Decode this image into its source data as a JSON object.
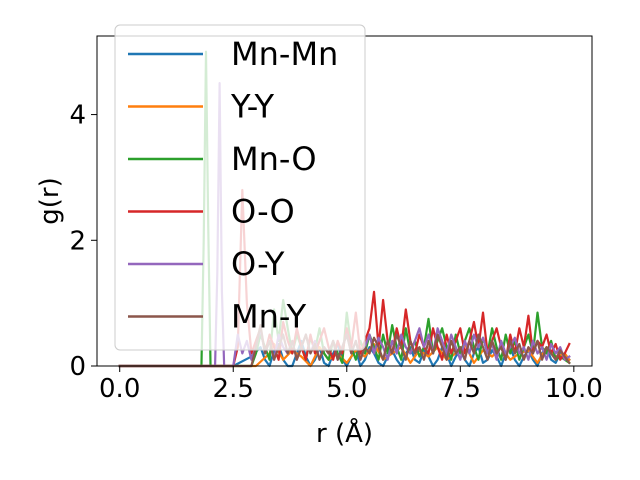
{
  "chart_data": {
    "type": "line",
    "title": "",
    "xlabel": "r (Å)",
    "ylabel": "g(r)",
    "xlim": [
      -0.5,
      10.4
    ],
    "ylim": [
      0,
      5.25
    ],
    "xticks": [
      0.0,
      2.5,
      5.0,
      7.5,
      10.0
    ],
    "xtick_labels": [
      "0.0",
      "2.5",
      "5.0",
      "7.5",
      "10.0"
    ],
    "yticks": [
      0,
      2,
      4
    ],
    "ytick_labels": [
      "0",
      "2",
      "4"
    ],
    "grid": false,
    "legend_position": "top-left",
    "series": [
      {
        "name": "Mn-Mn",
        "color": "#1f77b4",
        "x": [
          0.0,
          2.5,
          2.9,
          3.1,
          3.2,
          3.3,
          3.4,
          3.5,
          3.6,
          3.7,
          3.8,
          3.9,
          4.0,
          4.1,
          4.2,
          4.3,
          4.4,
          4.5,
          4.6,
          4.7,
          4.8,
          4.9,
          5.0,
          5.1,
          5.2,
          5.3,
          5.4,
          5.5,
          5.6,
          5.7,
          5.8,
          5.9,
          6.0,
          6.1,
          6.2,
          6.3,
          6.4,
          6.5,
          6.6,
          6.7,
          6.8,
          6.9,
          7.0,
          7.1,
          7.2,
          7.3,
          7.4,
          7.5,
          7.6,
          7.7,
          7.8,
          7.9,
          8.0,
          8.1,
          8.2,
          8.3,
          8.4,
          8.5,
          8.6,
          8.7,
          8.8,
          8.9,
          9.0,
          9.1,
          9.2,
          9.3,
          9.4,
          9.5,
          9.6,
          9.7,
          9.8,
          9.9
        ],
        "y": [
          0,
          0,
          0.15,
          0.3,
          0.1,
          0,
          0.25,
          0.35,
          0.1,
          0,
          0,
          0.2,
          0.4,
          0.15,
          0,
          0.1,
          0.3,
          0.05,
          0,
          0.2,
          0.35,
          0.1,
          0,
          0.15,
          0.25,
          0,
          0.1,
          0.3,
          0.2,
          0.05,
          0,
          0.15,
          0.25,
          0.1,
          0,
          0.2,
          0.3,
          0.1,
          0.05,
          0.25,
          0.15,
          0,
          0.1,
          0.3,
          0.2,
          0,
          0.15,
          0.25,
          0.1,
          0,
          0.2,
          0.3,
          0.05,
          0.1,
          0.25,
          0.15,
          0,
          0.2,
          0.3,
          0.1,
          0,
          0.15,
          0.25,
          0.1,
          0,
          0.2,
          0.3,
          0.1,
          0.05,
          0.2,
          0.15,
          0.1
        ]
      },
      {
        "name": "Y-Y",
        "color": "#ff7f0e",
        "x": [
          0.0,
          3.0,
          3.3,
          3.4,
          3.6,
          3.8,
          4.0,
          4.2,
          4.4,
          4.6,
          4.8,
          5.0,
          5.2,
          5.4,
          5.6,
          5.8,
          6.0,
          6.2,
          6.4,
          6.6,
          6.8,
          7.0,
          7.2,
          7.4,
          7.6,
          7.8,
          8.0,
          8.2,
          8.4,
          8.6,
          8.8,
          9.0,
          9.2,
          9.4,
          9.6,
          9.8,
          9.9
        ],
        "y": [
          0,
          0,
          0.2,
          0.35,
          0.1,
          0.25,
          0.15,
          0,
          0.3,
          0.1,
          0.2,
          0.05,
          0.25,
          0.15,
          0.35,
          0.1,
          0.2,
          0.3,
          0.05,
          0.25,
          0.15,
          0.3,
          0.1,
          0.2,
          0.35,
          0.05,
          0.25,
          0.15,
          0.3,
          0.1,
          0.2,
          0.25,
          0.05,
          0.3,
          0.15,
          0.2,
          0.1
        ]
      },
      {
        "name": "Mn-O",
        "color": "#2ca02c",
        "x": [
          0.0,
          1.8,
          1.85,
          1.9,
          1.95,
          2.0,
          2.1,
          2.3,
          2.5,
          2.7,
          2.9,
          3.0,
          3.1,
          3.2,
          3.3,
          3.4,
          3.5,
          3.6,
          3.7,
          3.8,
          3.9,
          4.0,
          4.1,
          4.2,
          4.3,
          4.4,
          4.5,
          4.6,
          4.7,
          4.8,
          4.9,
          5.0,
          5.1,
          5.2,
          5.3,
          5.4,
          5.5,
          5.6,
          5.7,
          5.8,
          5.9,
          6.0,
          6.1,
          6.2,
          6.3,
          6.4,
          6.5,
          6.6,
          6.7,
          6.8,
          6.9,
          7.0,
          7.1,
          7.2,
          7.3,
          7.4,
          7.5,
          7.6,
          7.7,
          7.8,
          7.9,
          8.0,
          8.1,
          8.2,
          8.3,
          8.4,
          8.5,
          8.6,
          8.7,
          8.8,
          8.9,
          9.0,
          9.1,
          9.2,
          9.3,
          9.4,
          9.5,
          9.6,
          9.7,
          9.8,
          9.9
        ],
        "y": [
          0,
          0,
          2.0,
          5.0,
          2.2,
          0,
          0,
          0,
          0,
          0,
          0,
          0.2,
          0.5,
          0.3,
          0.1,
          0.9,
          0.4,
          1.05,
          0.6,
          0.2,
          0.5,
          0.3,
          0.1,
          0.45,
          0.25,
          0.6,
          0.2,
          0.1,
          0.4,
          0.2,
          0.05,
          0.85,
          0.3,
          0.1,
          0.4,
          0.2,
          0.5,
          0.3,
          0.1,
          0.5,
          0.2,
          0.65,
          0.3,
          0.1,
          0.6,
          0.2,
          0.4,
          0.15,
          0.3,
          0.75,
          0.2,
          0.4,
          0.6,
          0.3,
          0.1,
          0.5,
          0.2,
          0.4,
          0.6,
          0.3,
          0.1,
          0.45,
          0.2,
          0.6,
          0.3,
          0.1,
          0.5,
          0.2,
          0.4,
          0.1,
          0.3,
          0.5,
          0.2,
          0.85,
          0.3,
          0.2,
          0.4,
          0.1,
          0.15,
          0.1,
          0.05
        ]
      },
      {
        "name": "O-O",
        "color": "#d62728",
        "x": [
          0.0,
          2.5,
          2.6,
          2.7,
          2.8,
          2.9,
          3.0,
          3.1,
          3.2,
          3.3,
          3.4,
          3.5,
          3.6,
          3.7,
          3.8,
          3.9,
          4.0,
          4.1,
          4.2,
          4.3,
          4.4,
          4.5,
          4.6,
          4.7,
          4.8,
          4.9,
          5.0,
          5.1,
          5.2,
          5.3,
          5.4,
          5.5,
          5.6,
          5.7,
          5.8,
          5.9,
          6.0,
          6.1,
          6.2,
          6.3,
          6.4,
          6.5,
          6.6,
          6.7,
          6.8,
          6.9,
          7.0,
          7.1,
          7.2,
          7.3,
          7.4,
          7.5,
          7.6,
          7.7,
          7.8,
          7.9,
          8.0,
          8.1,
          8.2,
          8.3,
          8.4,
          8.5,
          8.6,
          8.7,
          8.8,
          8.9,
          9.0,
          9.1,
          9.2,
          9.3,
          9.4,
          9.5,
          9.6,
          9.7,
          9.8,
          9.9
        ],
        "y": [
          0,
          0,
          0.3,
          2.8,
          1.0,
          0.2,
          0.4,
          0.6,
          0.2,
          0.5,
          0.3,
          0.1,
          0.7,
          0.4,
          0.2,
          0.6,
          0.3,
          0.1,
          0.5,
          0.2,
          0.4,
          0.6,
          0.3,
          0.1,
          0.4,
          0.2,
          0.6,
          0.3,
          0.85,
          0.2,
          0.4,
          0.6,
          1.18,
          0.3,
          1.05,
          0.4,
          0.2,
          0.6,
          0.3,
          0.9,
          0.4,
          0.2,
          0.5,
          0.3,
          0.2,
          0.6,
          0.3,
          0.1,
          0.5,
          0.2,
          0.4,
          0.6,
          0.2,
          0.4,
          0.7,
          0.3,
          0.85,
          0.2,
          0.4,
          0.6,
          0.3,
          0.1,
          0.5,
          0.2,
          0.6,
          0.3,
          0.8,
          0.2,
          0.4,
          0.3,
          0.5,
          0.2,
          0.35,
          0.1,
          0.2,
          0.35
        ]
      },
      {
        "name": "O-Y",
        "color": "#9467bd",
        "x": [
          0.0,
          2.1,
          2.15,
          2.2,
          2.25,
          2.3,
          2.4,
          2.5,
          2.6,
          2.7,
          2.8,
          2.9,
          3.0,
          3.1,
          3.2,
          3.3,
          3.4,
          3.5,
          3.6,
          3.7,
          3.8,
          3.9,
          4.0,
          4.1,
          4.2,
          4.3,
          4.4,
          4.5,
          4.6,
          4.7,
          4.8,
          4.9,
          5.0,
          5.1,
          5.2,
          5.3,
          5.4,
          5.5,
          5.6,
          5.7,
          5.8,
          5.9,
          6.0,
          6.1,
          6.2,
          6.3,
          6.4,
          6.5,
          6.6,
          6.7,
          6.8,
          6.9,
          7.0,
          7.1,
          7.2,
          7.3,
          7.4,
          7.5,
          7.6,
          7.7,
          7.8,
          7.9,
          8.0,
          8.1,
          8.2,
          8.3,
          8.4,
          8.5,
          8.6,
          8.7,
          8.8,
          8.9,
          9.0,
          9.1,
          9.2,
          9.3,
          9.4,
          9.5,
          9.6,
          9.7,
          9.8,
          9.9
        ],
        "y": [
          0,
          0,
          1.5,
          4.5,
          1.2,
          0,
          0,
          0,
          0.5,
          0.2,
          0.4,
          0.1,
          0.3,
          0.6,
          0.2,
          0.4,
          0.1,
          0.5,
          0.3,
          0.2,
          0.4,
          0.1,
          0.3,
          0.5,
          0.2,
          0.4,
          0.1,
          0.3,
          0.2,
          0.4,
          0.1,
          0.3,
          0.5,
          0.2,
          0.4,
          0.1,
          0.3,
          0.5,
          0.2,
          0.45,
          0.3,
          0.1,
          0.4,
          0.2,
          0.5,
          0.3,
          0.2,
          0.4,
          0.6,
          0.3,
          0.5,
          0.2,
          0.6,
          0.4,
          0.2,
          0.5,
          0.3,
          0.1,
          0.4,
          0.2,
          0.5,
          0.3,
          0.45,
          0.2,
          0.35,
          0.1,
          0.4,
          0.2,
          0.3,
          0.45,
          0.2,
          0.3,
          0.1,
          0.4,
          0.2,
          0.3,
          0.1,
          0.35,
          0.2,
          0.3,
          0.1,
          0.15
        ]
      },
      {
        "name": "Mn-Y",
        "color": "#8c564b",
        "x": [
          0.0,
          2.9,
          3.0,
          3.1,
          3.2,
          3.3,
          3.4,
          3.5,
          3.6,
          3.7,
          3.8,
          3.9,
          4.0,
          4.1,
          4.2,
          4.3,
          4.4,
          4.5,
          4.6,
          4.7,
          4.8,
          4.9,
          5.0,
          5.1,
          5.2,
          5.3,
          5.4,
          5.5,
          5.6,
          5.7,
          5.8,
          5.9,
          6.0,
          6.1,
          6.2,
          6.3,
          6.4,
          6.5,
          6.6,
          6.7,
          6.8,
          6.9,
          7.0,
          7.1,
          7.2,
          7.3,
          7.4,
          7.5,
          7.6,
          7.7,
          7.8,
          7.9,
          8.0,
          8.1,
          8.2,
          8.3,
          8.4,
          8.5,
          8.6,
          8.7,
          8.8,
          8.9,
          9.0,
          9.1,
          9.2,
          9.3,
          9.4,
          9.5,
          9.6,
          9.7,
          9.8,
          9.9
        ],
        "y": [
          0,
          0,
          0.3,
          0.65,
          0.2,
          0.4,
          0.1,
          0.3,
          0.5,
          0.2,
          0.4,
          0.1,
          0.3,
          0.5,
          0.2,
          0.35,
          0.1,
          0.3,
          0.2,
          0.4,
          0.1,
          0.3,
          0.5,
          0.2,
          0.4,
          0.1,
          0.3,
          0.2,
          0.45,
          0.3,
          0.1,
          0.4,
          0.2,
          0.5,
          0.3,
          0.1,
          0.4,
          0.2,
          0.3,
          0.1,
          0.4,
          0.2,
          0.5,
          0.3,
          0.1,
          0.4,
          0.2,
          0.3,
          0.1,
          0.4,
          0.2,
          0.5,
          0.3,
          0.1,
          0.4,
          0.2,
          0.3,
          0.1,
          0.4,
          0.2,
          0.35,
          0.1,
          0.3,
          0.2,
          0.4,
          0.1,
          0.3,
          0.2,
          0.1,
          0.25,
          0.15,
          0.05
        ]
      }
    ]
  }
}
